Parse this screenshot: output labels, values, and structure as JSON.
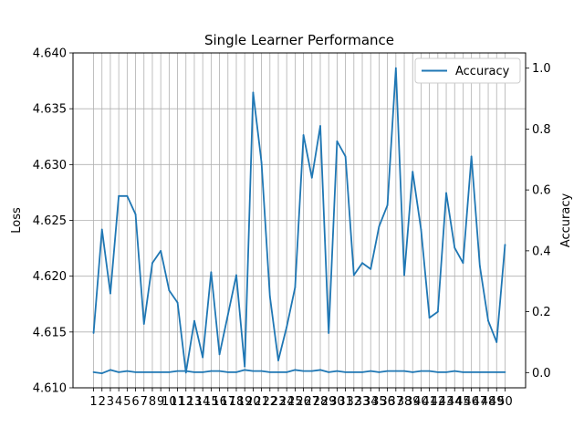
{
  "chart_data": {
    "type": "line",
    "title": "Single Learner Performance",
    "xlabel": "",
    "ylabel_left": "Loss",
    "ylabel_right": "Accuracy",
    "x": [
      1,
      2,
      3,
      4,
      5,
      6,
      7,
      8,
      9,
      10,
      11,
      12,
      13,
      14,
      15,
      16,
      17,
      18,
      19,
      20,
      21,
      22,
      23,
      24,
      25,
      26,
      27,
      28,
      29,
      30,
      31,
      32,
      33,
      34,
      35,
      36,
      37,
      38,
      39,
      40,
      41,
      42,
      43,
      44,
      45,
      46,
      47,
      48,
      49,
      50
    ],
    "ylim_left": [
      4.61,
      4.64
    ],
    "ylim_right": [
      -0.05,
      1.05
    ],
    "yticks_left": [
      "4.610",
      "4.615",
      "4.620",
      "4.625",
      "4.630",
      "4.635",
      "4.640"
    ],
    "yticks_right": [
      "0.0",
      "0.2",
      "0.4",
      "0.6",
      "0.8",
      "1.0"
    ],
    "grid": true,
    "legend": {
      "position": "top-right",
      "entries": [
        "Accuracy"
      ]
    },
    "series": [
      {
        "name": "Accuracy",
        "axis": "right",
        "color": "#1f77b4",
        "values": [
          0.13,
          0.47,
          0.26,
          0.58,
          0.58,
          0.52,
          0.16,
          0.36,
          0.4,
          0.27,
          0.23,
          0.0,
          0.17,
          0.05,
          0.33,
          0.06,
          0.19,
          0.32,
          0.02,
          0.92,
          0.69,
          0.25,
          0.04,
          0.15,
          0.28,
          0.78,
          0.64,
          0.81,
          0.13,
          0.76,
          0.71,
          0.32,
          0.36,
          0.34,
          0.48,
          0.55,
          1.0,
          0.32,
          0.66,
          0.47,
          0.18,
          0.2,
          0.59,
          0.41,
          0.36,
          0.71,
          0.35,
          0.17,
          0.1,
          0.42
        ]
      },
      {
        "axis": "left",
        "color": "#1f77b4",
        "values": [
          4.6114,
          4.6113,
          4.6116,
          4.6114,
          4.6115,
          4.6114,
          4.6114,
          4.6114,
          4.6114,
          4.6114,
          4.6115,
          4.6115,
          4.6114,
          4.6114,
          4.6115,
          4.6115,
          4.6114,
          4.6114,
          4.6116,
          4.6115,
          4.6115,
          4.6114,
          4.6114,
          4.6114,
          4.6116,
          4.6115,
          4.6115,
          4.6116,
          4.6114,
          4.6115,
          4.6114,
          4.6114,
          4.6114,
          4.6115,
          4.6114,
          4.6115,
          4.6115,
          4.6115,
          4.6114,
          4.6115,
          4.6115,
          4.6114,
          4.6114,
          4.6115,
          4.6114,
          4.6114,
          4.6114,
          4.6114,
          4.6114,
          4.6114
        ]
      }
    ]
  }
}
